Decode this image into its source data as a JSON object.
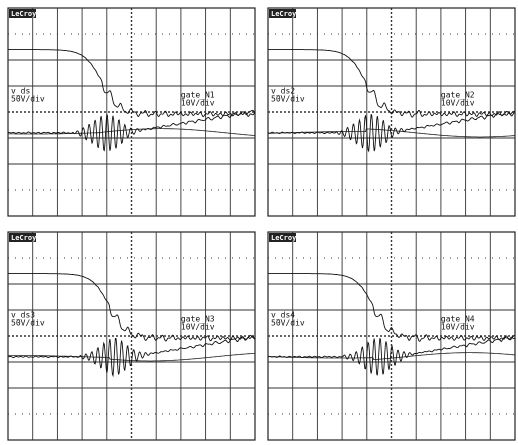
{
  "panels": [
    {
      "brand": "LeCroy",
      "vds_name": "v_ds",
      "vds_scale": "50V/div",
      "gate_name": "gate_N1",
      "gate_scale": "10V/div"
    },
    {
      "brand": "LeCroy",
      "vds_name": "v_ds2",
      "vds_scale": "50V/div",
      "gate_name": "gate_N2",
      "gate_scale": "10V/div"
    },
    {
      "brand": "LeCroy",
      "vds_name": "v_ds3",
      "vds_scale": "50V/div",
      "gate_name": "gate_N3",
      "gate_scale": "10V/div"
    },
    {
      "brand": "LeCroy",
      "vds_name": "v_ds4",
      "vds_scale": "50V/div",
      "gate_name": "gate_N4",
      "gate_scale": "10V/div"
    }
  ]
}
